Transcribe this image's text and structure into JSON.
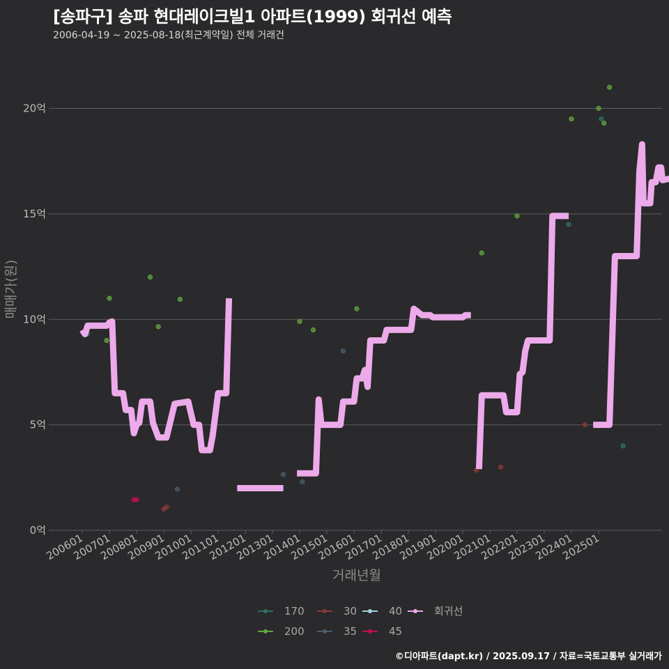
{
  "header": {
    "title": "[송파구] 송파 현대레이크빌1 아파트(1999) 회귀선 예측",
    "subtitle": "2006-04-19 ~ 2025-08-18(최근계약일) 전체 거래건"
  },
  "footer": {
    "credit": "©디아파트(dapt.kr) / 2025.09.17 / 자료=국토교통부 실거래가"
  },
  "chart_data": {
    "type": "scatter",
    "title": "[송파구] 송파 현대레이크빌1 아파트(1999) 회귀선 예측",
    "subtitle": "2006-04-19 ~ 2025-08-18(최근계약일) 전체 거래건",
    "xlabel": "거래년월",
    "ylabel": "매매가(원)",
    "ylim": [
      0,
      22
    ],
    "xlim": [
      2005.6,
      2027.1
    ],
    "y_ticks": [
      0,
      5,
      10,
      15,
      20
    ],
    "y_tick_labels": [
      "0억",
      "5억",
      "10억",
      "15억",
      "20억"
    ],
    "x_ticks": [
      2006,
      2007,
      2008,
      2009,
      2010,
      2011,
      2012,
      2013,
      2014,
      2015,
      2016,
      2017,
      2018,
      2019,
      2020,
      2021,
      2022,
      2023,
      2024,
      2025
    ],
    "x_tick_labels": [
      "200601",
      "200701",
      "200801",
      "200901",
      "201001",
      "201101",
      "201201",
      "201301",
      "201401",
      "201501",
      "201601",
      "201701",
      "201801",
      "201901",
      "202001",
      "202101",
      "202201",
      "202301",
      "202401",
      "202501"
    ],
    "grid": true,
    "legend_position": "bottom",
    "series": [
      {
        "name": "170",
        "color": "#2e6f6b",
        "points": [
          [
            2006.2,
            9.3
          ],
          [
            2023.9,
            14.5
          ],
          [
            2025.1,
            19.5
          ],
          [
            2025.9,
            4.0
          ]
        ]
      },
      {
        "name": "200",
        "color": "#62a640",
        "points": [
          [
            2006.9,
            9.0
          ],
          [
            2007.0,
            11.0
          ],
          [
            2008.5,
            12.0
          ],
          [
            2008.8,
            9.65
          ],
          [
            2009.6,
            10.95
          ],
          [
            2014.0,
            9.9
          ],
          [
            2014.5,
            9.5
          ],
          [
            2016.1,
            10.5
          ],
          [
            2020.7,
            13.15
          ],
          [
            2022.0,
            14.9
          ],
          [
            2024.0,
            19.5
          ],
          [
            2025.0,
            20.0
          ],
          [
            2025.2,
            19.3
          ],
          [
            2025.4,
            21.0
          ]
        ]
      },
      {
        "name": "30",
        "color": "#8b3a3a",
        "points": [
          [
            2009.0,
            1.0
          ],
          [
            2009.1,
            1.1
          ],
          [
            2020.5,
            2.85
          ],
          [
            2020.6,
            3.3
          ],
          [
            2021.4,
            3.0
          ],
          [
            2024.5,
            5.0
          ]
        ]
      },
      {
        "name": "35",
        "color": "#4b5e6e",
        "points": [
          [
            2009.5,
            1.95
          ],
          [
            2013.4,
            2.65
          ],
          [
            2014.1,
            2.3
          ],
          [
            2015.6,
            8.5
          ]
        ]
      },
      {
        "name": "40",
        "color": "#9fd4dc",
        "points": []
      },
      {
        "name": "45",
        "color": "#c3104f",
        "points": [
          [
            2007.9,
            1.45
          ],
          [
            2008.0,
            1.45
          ]
        ]
      }
    ],
    "regression": {
      "name": "회귀선",
      "color": "#ecaaea",
      "segments": [
        [
          [
            2006.0,
            9.5
          ],
          [
            2006.1,
            9.3
          ],
          [
            2006.2,
            9.7
          ],
          [
            2006.9,
            9.7
          ],
          [
            2007.0,
            9.85
          ],
          [
            2007.1,
            9.9
          ],
          [
            2007.2,
            6.5
          ],
          [
            2007.5,
            6.5
          ],
          [
            2007.6,
            5.7
          ],
          [
            2007.8,
            5.7
          ],
          [
            2007.9,
            4.6
          ],
          [
            2008.0,
            5.0
          ],
          [
            2008.1,
            5.1
          ],
          [
            2008.2,
            6.1
          ],
          [
            2008.5,
            6.1
          ],
          [
            2008.6,
            5.1
          ],
          [
            2008.8,
            4.4
          ],
          [
            2009.1,
            4.4
          ],
          [
            2009.4,
            6.0
          ],
          [
            2009.9,
            6.1
          ],
          [
            2010.1,
            5.0
          ],
          [
            2010.3,
            5.0
          ],
          [
            2010.4,
            3.8
          ],
          [
            2010.7,
            3.8
          ],
          [
            2010.8,
            4.5
          ],
          [
            2011.0,
            6.5
          ],
          [
            2011.3,
            6.5
          ],
          [
            2011.4,
            11.0
          ]
        ],
        [
          [
            2011.7,
            2.0
          ],
          [
            2013.4,
            2.0
          ]
        ],
        [
          [
            2013.9,
            2.7
          ],
          [
            2014.6,
            2.7
          ],
          [
            2014.7,
            6.2
          ],
          [
            2014.8,
            5.0
          ],
          [
            2015.5,
            5.0
          ],
          [
            2015.6,
            6.1
          ],
          [
            2016.0,
            6.1
          ],
          [
            2016.1,
            7.2
          ],
          [
            2016.3,
            7.2
          ],
          [
            2016.4,
            7.6
          ],
          [
            2016.5,
            6.8
          ],
          [
            2016.6,
            9.0
          ],
          [
            2017.1,
            9.0
          ],
          [
            2017.2,
            9.5
          ],
          [
            2018.1,
            9.5
          ],
          [
            2018.2,
            10.5
          ],
          [
            2018.4,
            10.3
          ],
          [
            2018.5,
            10.2
          ],
          [
            2018.8,
            10.2
          ],
          [
            2018.9,
            10.1
          ],
          [
            2020.0,
            10.1
          ],
          [
            2020.1,
            10.2
          ],
          [
            2020.3,
            10.2
          ]
        ],
        [
          [
            2020.6,
            2.9
          ],
          [
            2020.7,
            6.4
          ],
          [
            2021.5,
            6.4
          ],
          [
            2021.6,
            5.6
          ],
          [
            2022.0,
            5.6
          ],
          [
            2022.1,
            7.4
          ],
          [
            2022.2,
            7.5
          ],
          [
            2022.3,
            8.5
          ],
          [
            2022.4,
            9.0
          ],
          [
            2023.2,
            9.0
          ],
          [
            2023.3,
            14.9
          ],
          [
            2023.9,
            14.9
          ]
        ],
        [
          [
            2024.8,
            5.0
          ],
          [
            2025.4,
            5.0
          ],
          [
            2025.6,
            13.0
          ],
          [
            2026.4,
            13.0
          ],
          [
            2026.5,
            17.0
          ],
          [
            2026.6,
            18.3
          ],
          [
            2026.65,
            15.5
          ],
          [
            2026.9,
            15.5
          ],
          [
            2026.95,
            16.5
          ],
          [
            2027.1,
            16.5
          ],
          [
            2027.2,
            17.2
          ],
          [
            2027.3,
            17.2
          ],
          [
            2027.35,
            16.6
          ],
          [
            2028.1,
            16.8
          ]
        ]
      ]
    }
  }
}
